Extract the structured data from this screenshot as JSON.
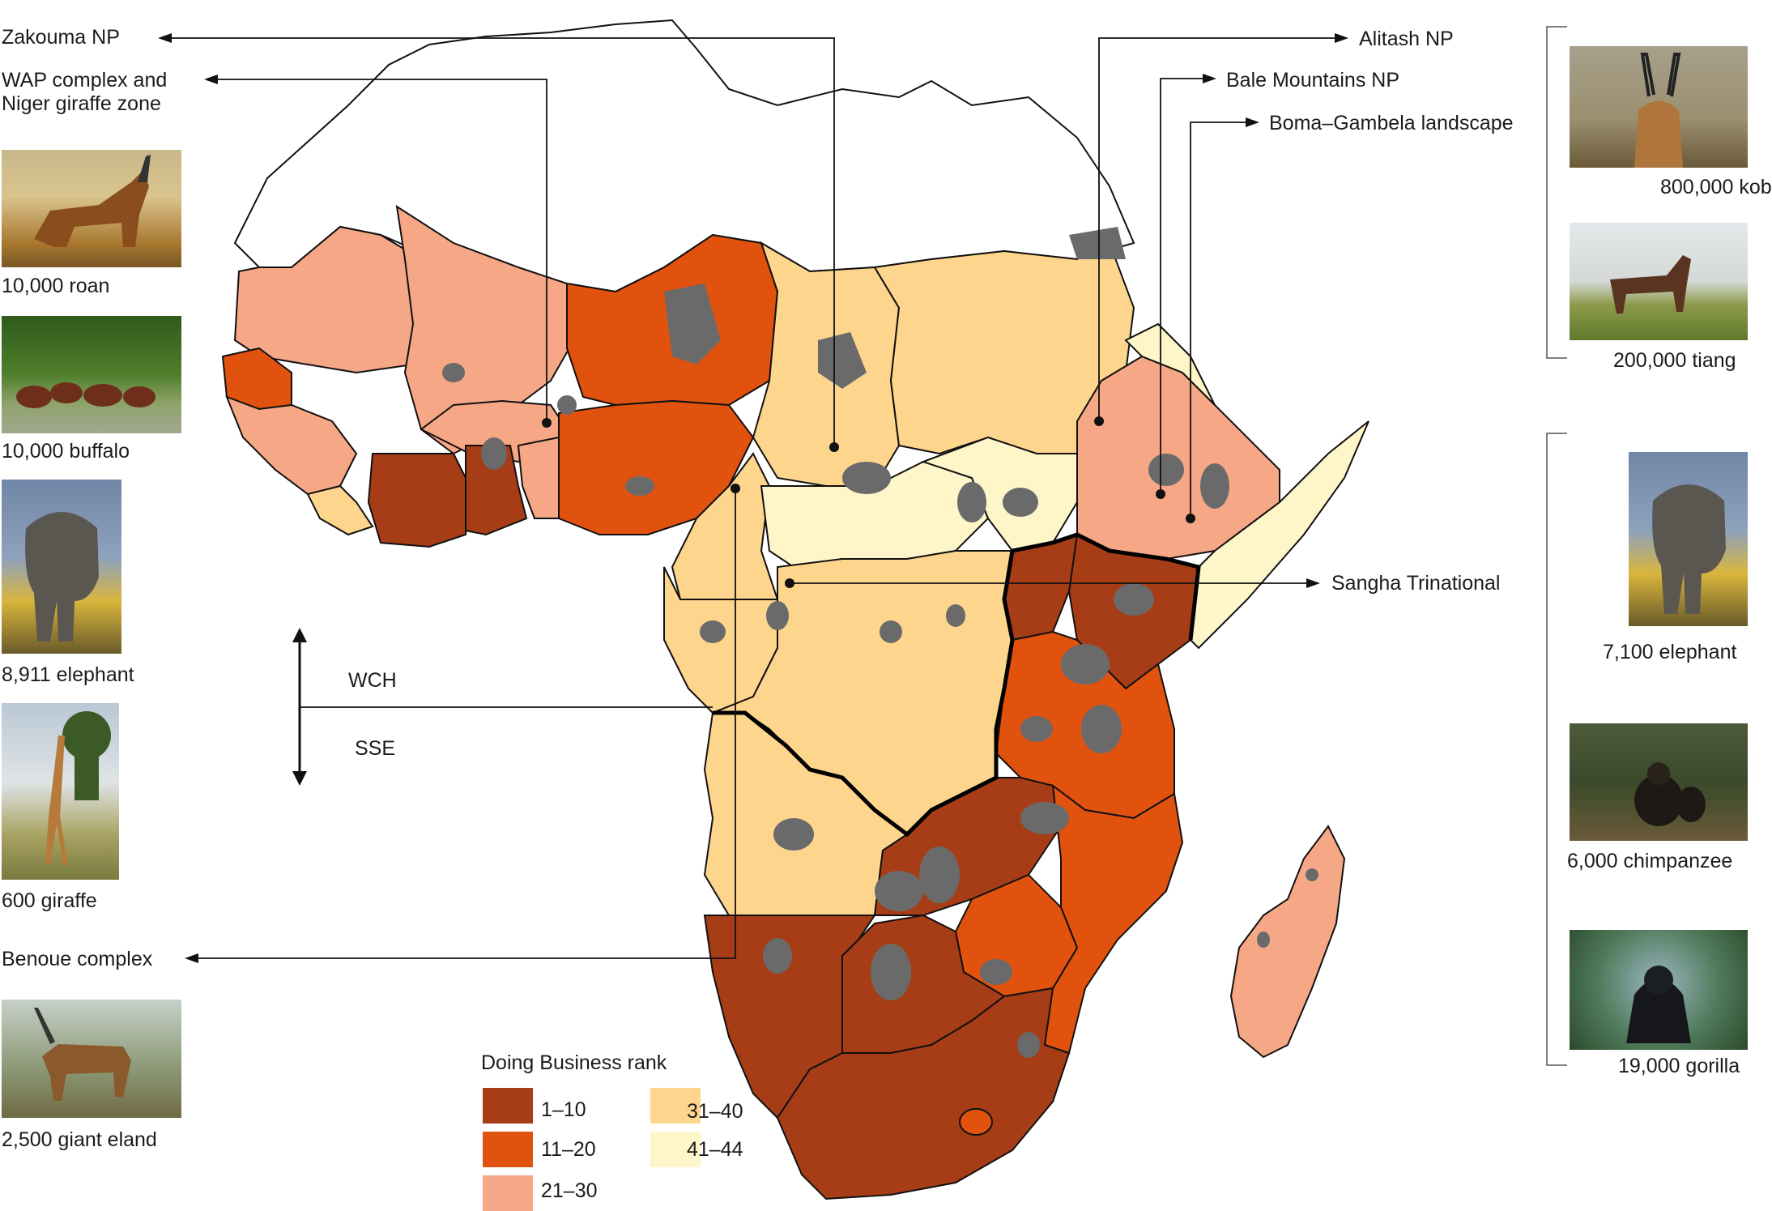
{
  "legend": {
    "title": "Doing Business rank",
    "items": [
      {
        "label": "1–10",
        "color": "#a63d17"
      },
      {
        "label": "11–20",
        "color": "#e2520f"
      },
      {
        "label": "21–30",
        "color": "#f6a785"
      },
      {
        "label": "31–40",
        "color": "#fdd58d"
      },
      {
        "label": "41–44",
        "color": "#fef5c9"
      }
    ]
  },
  "colors": {
    "protected_area": "#6a6a6a",
    "no_data": "#ffffff",
    "border": "#111111"
  },
  "sites": {
    "zakouma": "Zakouma NP",
    "wap_line1": "WAP complex and",
    "wap_line2": "Niger giraffe zone",
    "alitash": "Alitash NP",
    "bale": "Bale Mountains NP",
    "boma": "Boma–Gambela landscape",
    "sangha": "Sangha Trinational",
    "benoue": "Benoue complex"
  },
  "regions": {
    "wch": "WCH",
    "sse": "SSE"
  },
  "left_species": [
    {
      "caption": "10,000 roan",
      "icon": "roan-antelope-photo"
    },
    {
      "caption": "10,000 buffalo",
      "icon": "buffalo-photo"
    },
    {
      "caption": "8,911 elephant",
      "icon": "elephant-photo"
    },
    {
      "caption": "600 giraffe",
      "icon": "giraffe-photo"
    },
    {
      "caption": "2,500 giant eland",
      "icon": "giant-eland-photo"
    }
  ],
  "right_species": [
    {
      "caption": "800,000 kob",
      "icon": "kob-photo"
    },
    {
      "caption": "200,000 tiang",
      "icon": "tiang-photo"
    },
    {
      "caption": "7,100 elephant",
      "icon": "elephant-photo"
    },
    {
      "caption": "6,000 chimpanzee",
      "icon": "chimpanzee-photo"
    },
    {
      "caption": "19,000 gorilla",
      "icon": "gorilla-photo"
    }
  ]
}
